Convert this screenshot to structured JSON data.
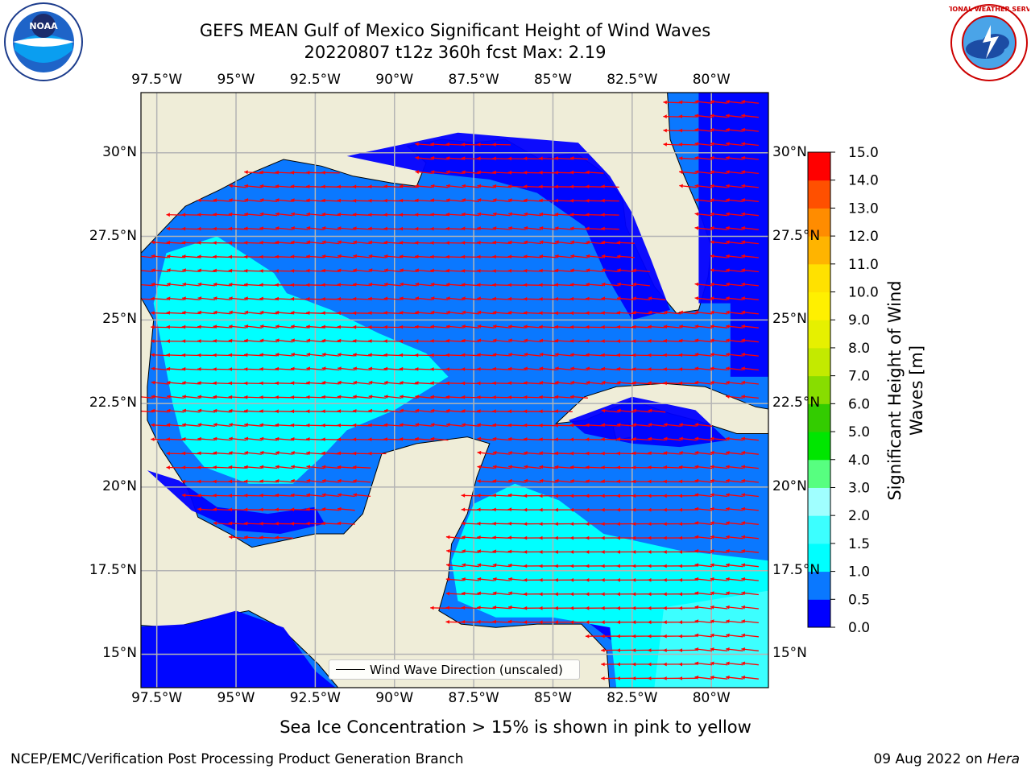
{
  "title_line1": "GEFS MEAN Gulf of Mexico Significant Height of Wind Waves",
  "title_line2": "20220807 t12z 360h fcst   Max: 2.19",
  "lon_labels": [
    "97.5°W",
    "95°W",
    "92.5°W",
    "90°W",
    "87.5°W",
    "85°W",
    "82.5°W",
    "80°W"
  ],
  "lat_labels": [
    "30°N",
    "27.5°N",
    "25°N",
    "22.5°N",
    "20°N",
    "17.5°N",
    "15°N"
  ],
  "lon_range": [
    -98,
    -78.2
  ],
  "lat_range": [
    14,
    31.8
  ],
  "colorbar": {
    "label_line1": "Significant Height of Wind",
    "label_line2": "Waves [m]",
    "ticks": [
      "0.0",
      "0.5",
      "1.0",
      "1.5",
      "2.0",
      "3.0",
      "4.0",
      "5.0",
      "6.0",
      "7.0",
      "8.0",
      "9.0",
      "10.0",
      "11.0",
      "12.0",
      "13.0",
      "14.0",
      "15.0"
    ],
    "colors": [
      "#0000ff",
      "#0a78ff",
      "#00ffff",
      "#3cffff",
      "#a0ffff",
      "#57ff80",
      "#00e600",
      "#33cc00",
      "#88dd00",
      "#c3ea00",
      "#e6f000",
      "#fff000",
      "#ffe100",
      "#ffb400",
      "#ff8c00",
      "#ff5000",
      "#ff0000"
    ]
  },
  "legend_label": "Wind Wave Direction (unscaled)",
  "subtitle": "Sea Ice Concentration > 15% is shown in pink to yellow",
  "footer_left": "NCEP/EMC/Verification Post Processing Product Generation Branch",
  "footer_date": "09 Aug 2022 on ",
  "footer_host": "Hera",
  "logos": {
    "left": "NOAA",
    "right": "NATIONAL WEATHER SERVICE"
  },
  "colors": {
    "land": "#efedd8",
    "arrow": "#ff0000",
    "grid": "#b4b4b4"
  }
}
